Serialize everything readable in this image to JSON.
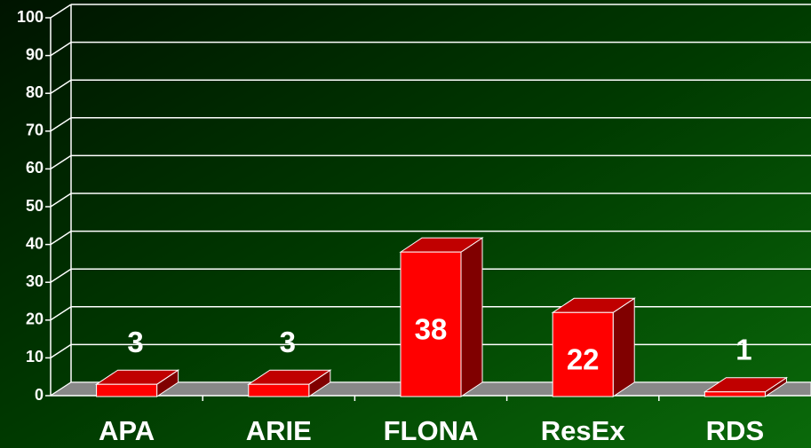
{
  "chart_data": {
    "type": "bar3d",
    "categories": [
      "APA",
      "ARIE",
      "FLONA",
      "ResEx",
      "RDS"
    ],
    "values": [
      3,
      3,
      38,
      22,
      1
    ],
    "color": "#ff0000",
    "ylim": [
      0,
      100
    ],
    "yticks": [
      0,
      10,
      20,
      30,
      40,
      50,
      60,
      70,
      80,
      90,
      100
    ],
    "grid": true
  }
}
